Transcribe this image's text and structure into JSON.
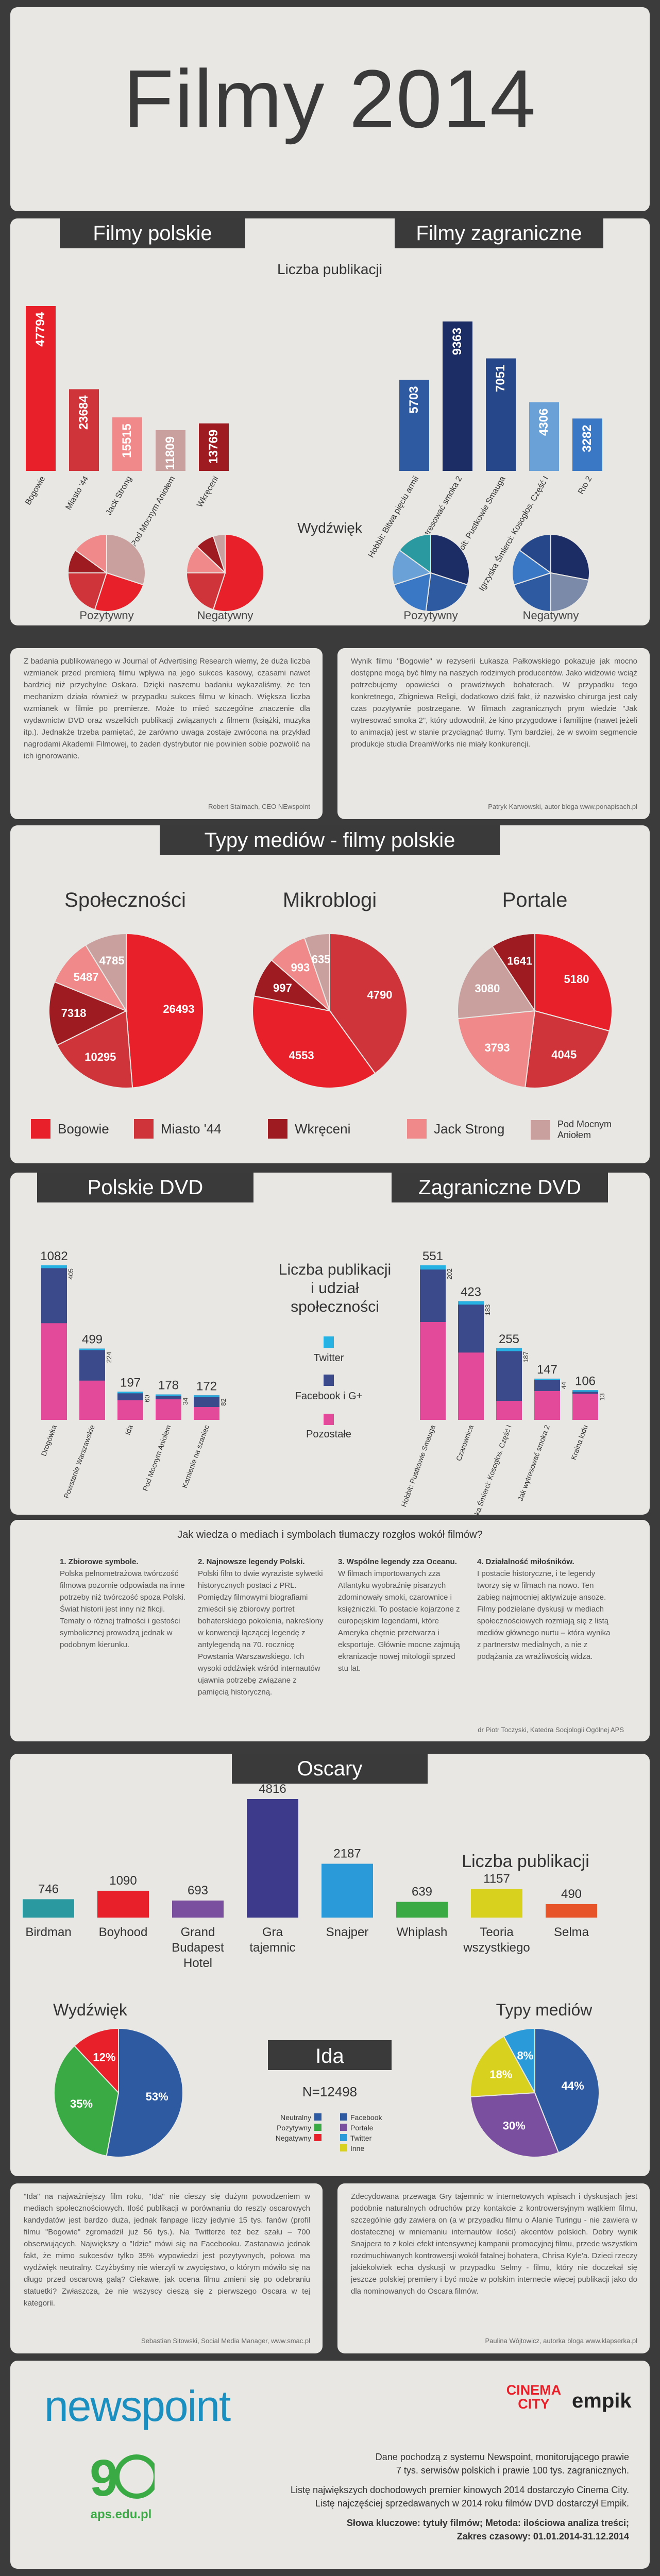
{
  "title": "Filmy 2014",
  "sec1": {
    "pl_head": "Filmy polskie",
    "fr_head": "Filmy zagraniczne",
    "chart_title": "Liczba publikacji",
    "sentiment_title": "Wydźwięk",
    "pos_label": "Pozytywny",
    "neg_label": "Negatywny"
  },
  "quotes1": {
    "left": "Z badania publikowanego w Journal of Advertising Research wiemy, że duża liczba wzmianek przed premierą filmu wpływa na jego sukces kasowy, czasami nawet bardziej niż przychylne Oskara. Dzięki naszemu badaniu wykazaliśmy, że ten mechanizm działa również w przypadku sukces filmu w kinach. Większa liczba wzmianek w filmie po premierze. Może to mieć szczególne znaczenie dla wydawnictw DVD oraz wszelkich publikacji związanych z filmem (książki, muzyka itp.). Jednakże trzeba pamiętać, że zarówno uwaga zostaje zwrócona na przykład nagrodami Akademii Filmowej, to żaden dystrybutor nie powinien sobie pozwolić na ich ignorowanie.",
    "left_sig": "Robert Stalmach, CEO NEwspoint",
    "right": "Wynik filmu \"Bogowie\" w rezyserii Łukasza Pałkowskiego pokazuje jak mocno dostępne mogą być filmy na naszych rodzimych producentów. Jako widzowie wciąż potrzebujemy opowieści o prawdziwych bohaterach. W przypadku tego konkretnego, Zbigniewa Religi, dodatkowo dziś fakt, iż nazwisko chirurga jest cały czas pozytywnie postrzegane. W filmach zagranicznych prym wiedzie \"Jak wytresować smoka 2\", który udowodnił, że kino przygodowe i familijne (nawet jeżeli to animacja) jest w stanie przyciągnąć tłumy. Tym bardziej, że w swoim segmencie produkcje studia DreamWorks nie miały konkurencji.",
    "right_sig": "Patryk Karwowski, autor bloga www.ponapisach.pl"
  },
  "sec2": {
    "head": "Typy mediów - filmy polskie",
    "pie1_title": "Społeczności",
    "pie2_title": "Mikroblogi",
    "pie3_title": "Portale"
  },
  "legend2": [
    {
      "label": "Bogowie",
      "color": "#e8202a"
    },
    {
      "label": "Miasto '44",
      "color": "#d0343b"
    },
    {
      "label": "Wkręceni",
      "color": "#9e1b22"
    },
    {
      "label": "Jack Strong",
      "color": "#f08a8a"
    },
    {
      "label": "Pod Mocnym Aniołem",
      "color": "#c9a09e"
    }
  ],
  "sec3": {
    "pl_head": "Polskie DVD",
    "fr_head": "Zagraniczne DVD",
    "mid_title": "Liczba publikacji i udział społeczności",
    "leg_twitter": "Twitter",
    "leg_fb": "Facebook i G+",
    "leg_other": "Pozostałe"
  },
  "sec4": {
    "question": "Jak wiedza o mediach i symbolach tłumaczy rozgłos wokół filmów?",
    "c1_head": "1. Zbiorowe symbole.",
    "c1": "Polska pełnometrażowa twórczość filmowa pozornie odpowiada na inne potrzeby niż twórczość spoza Polski. Świat historii jest inny niż fikcji. Tematy o różnej trafności i gestości symbolicznej prowadzą jednak w podobnym kierunku.",
    "c2_head": "2. Najnowsze legendy Polski.",
    "c2": "Polski film to dwie wyraziste sylwetki historycznych postaci z PRL. Pomiędzy filmowymi biografiami zmieścił się zbiorowy portret bohaterskiego pokolenia, nakreślony w konwencji łączącej legendę z antylegendą na 70. rocznicę Powstania Warszawskiego. Ich wysoki oddźwięk wśród internautów ujawnia potrzebę związane z pamięcią historyczną.",
    "c3_head": "3. Wspólne legendy zza Oceanu.",
    "c3": "W filmach importowanych zza Atlantyku wyobraźnię pisarzych zdominowały smoki, czarownice i księżniczki. To postacie kojarzone z europejskim legendami, które Ameryka chętnie przetwarza i eksportuje. Głównie mocne zajmują ekranizacje nowej mitologii sprzed stu lat.",
    "c4_head": "4. Działalność miłośników.",
    "c4": "I postacie historyczne, i te legendy tworzy się w filmach na nowo. Ten zabieg najmocniej aktywizuje ansoze. Filmy podzielane dyskusji w mediach społecznościowych rozmiają się z listą mediów głównego nurtu – która wynika z partnerstw medialnych, a nie z podążania za wrażliwością widza.",
    "sig": "dr Piotr Toczyski, Katedra Socjologii Ogólnej APS"
  },
  "sec5": {
    "head": "Oscary",
    "chart_title": "Liczba publikacji",
    "sent_title": "Wydźwięk",
    "media_title": "Typy mediów",
    "ida_head": "Ida",
    "ida_n": "N=12498",
    "leg_neutral": "Neutralny",
    "leg_pos": "Pozytywny",
    "leg_neg": "Negatywny",
    "leg_fb": "Facebook",
    "leg_portal": "Portale",
    "leg_tw": "Twitter",
    "leg_inne": "Inne"
  },
  "quotes2": {
    "left": "\"Ida\" na najważniejszy film roku, \"Ida\" nie cieszy się dużym powodzeniem w mediach społecznościowych. Ilość publikacji w porównaniu do reszty oscarowych kandydatów jest bardzo duża, jednak fanpage liczy jedynie 15 tys. fanów (profil filmu \"Bogowie\" zgromadził już 56 tys.). Na Twitterze też bez szału – 700 obserwujących. Największy o \"Idzie\" mówi się na Facebooku. Zastanawia jednak fakt, że mimo sukcesów tylko 35% wypowiedzi jest pozytywnych, połowa ma wydźwięk neutralny. Czyżbyśmy nie wierzyli w zwycięstwo, o którym mówiło się na długo przed oscarową galą? Ciekawe, jak ocena filmu zmieni się po odebraniu statuetki? Zwłaszcza, że nie wszyscy cieszą się z pierwszego Oscara w tej kategorii.",
    "left_sig": "Sebastian Sitowski, Social Media Manager, www.smac.pl",
    "right": "Zdecydowana przewaga Gry tajemnic w internetowych wpisach i dyskusjach jest podobnie naturalnych odruchów przy kontakcie z kontrowersyjnym wątkiem filmu, szczególnie gdy zawiera on (a w przypadku filmu o Alanie Turingu - nie zawiera w dostatecznej w mniemaniu internautów ilości) akcentów polskich. Dobry wynik Snajpera to z kolei efekt intensywnej kampanii promocyjnej filmu, przede wszystkim rozdmuchiwanych kontrowersji wokół fatalnej bohatera, Chrisa Kyle'a. Dzieci rzeczy jakiekolwiek echa dyskusji w przypadku Selmy - filmu, który nie doczekał się jeszcze polskiej premiery i być może w polskim internecie więcej publikacji jako do dla nominowanych do Oscara filmów.",
    "right_sig": "Paulina Wójtowicz, autorka bloga www.klapserka.pl"
  },
  "footer": {
    "logo": "newspoint",
    "cinema_city": "CINEMA CITY",
    "empik": "empik",
    "aps": "aps.edu.pl",
    "line1": "Dane pochodzą z systemu Newspoint, monitorującego prawie",
    "line2": "7 tys. serwisów polskich i prawie 100 tys. zagranicznych.",
    "line3": "Listę największych dochodowych premier kinowych 2014 dostarczyło Cinema City.",
    "line4": "Listę najczęściej sprzedawanych w 2014 roku filmów DVD dostarczył Empik.",
    "line5": "Słowa kluczowe: tytuły filmów; Metoda: ilościowa analiza treści;",
    "line6": "Zakres czasowy: 01.01.2014-31.12.2014"
  },
  "chart_data": [
    {
      "type": "bar",
      "title": "Liczba publikacji",
      "categories": [
        "Bogowie",
        "Miasto '44",
        "Jack Strong",
        "Pod Mocnym Aniołem",
        "Wkręceni"
      ],
      "values": [
        47794,
        23684,
        15515,
        11809,
        13769
      ],
      "colors": [
        "#e8202a",
        "#d0343b",
        "#f08a8a",
        "#c9a09e",
        "#9e1b22"
      ]
    },
    {
      "type": "bar",
      "title": "Liczba publikacji",
      "categories": [
        "Hobbit: Bitwa pięciu armii",
        "Jak wytresować smoka 2",
        "Hobbit: Pustkowie Smauga",
        "Igrzyska Śmierci: Kosogłos. Część I",
        "Rio 2"
      ],
      "values": [
        5703,
        9363,
        7051,
        4306,
        3282
      ],
      "colors": [
        "#2d5aa0",
        "#1c2c64",
        "#26478a",
        "#6aa2d8",
        "#3a78c6"
      ]
    },
    {
      "type": "pie",
      "title": "Pozytywny",
      "slices": [
        {
          "v": 30,
          "c": "#c9a09e"
        },
        {
          "v": 25,
          "c": "#e8202a"
        },
        {
          "v": 20,
          "c": "#d0343b"
        },
        {
          "v": 10,
          "c": "#9e1b22"
        },
        {
          "v": 15,
          "c": "#f08a8a"
        }
      ]
    },
    {
      "type": "pie",
      "title": "Negatywny",
      "slices": [
        {
          "v": 55,
          "c": "#e8202a"
        },
        {
          "v": 20,
          "c": "#d0343b"
        },
        {
          "v": 12,
          "c": "#f08a8a"
        },
        {
          "v": 8,
          "c": "#9e1b22"
        },
        {
          "v": 5,
          "c": "#c9a09e"
        }
      ]
    },
    {
      "type": "pie",
      "title": "Pozytywny",
      "slices": [
        {
          "v": 30,
          "c": "#1c2c64"
        },
        {
          "v": 22,
          "c": "#2d5aa0"
        },
        {
          "v": 18,
          "c": "#3a78c6"
        },
        {
          "v": 15,
          "c": "#6aa2d8"
        },
        {
          "v": 15,
          "c": "#2b9aa0"
        }
      ]
    },
    {
      "type": "pie",
      "title": "Negatywny",
      "slices": [
        {
          "v": 28,
          "c": "#1c2c64"
        },
        {
          "v": 22,
          "c": "#7a8aa8"
        },
        {
          "v": 20,
          "c": "#2d5aa0"
        },
        {
          "v": 15,
          "c": "#3a78c6"
        },
        {
          "v": 15,
          "c": "#26478a"
        }
      ]
    },
    {
      "type": "pie",
      "title": "Społeczności",
      "slices": [
        {
          "label": "26493",
          "v": 26493,
          "c": "#e8202a"
        },
        {
          "label": "10295",
          "v": 10295,
          "c": "#d0343b"
        },
        {
          "label": "7318",
          "v": 7318,
          "c": "#9e1b22"
        },
        {
          "label": "5487",
          "v": 5487,
          "c": "#f08a8a"
        },
        {
          "label": "4785",
          "v": 4785,
          "c": "#c9a09e"
        }
      ]
    },
    {
      "type": "pie",
      "title": "Mikroblogi",
      "slices": [
        {
          "label": "4790",
          "v": 4790,
          "c": "#d0343b"
        },
        {
          "label": "4553",
          "v": 4553,
          "c": "#e8202a"
        },
        {
          "label": "997",
          "v": 997,
          "c": "#9e1b22"
        },
        {
          "label": "993",
          "v": 993,
          "c": "#f08a8a"
        },
        {
          "label": "635",
          "v": 635,
          "c": "#c9a09e"
        }
      ]
    },
    {
      "type": "pie",
      "title": "Portale",
      "slices": [
        {
          "label": "5180",
          "v": 5180,
          "c": "#e8202a"
        },
        {
          "label": "4045",
          "v": 4045,
          "c": "#d0343b"
        },
        {
          "label": "3793",
          "v": 3793,
          "c": "#f08a8a"
        },
        {
          "label": "3080",
          "v": 3080,
          "c": "#c9a09e"
        },
        {
          "label": "1641",
          "v": 1641,
          "c": "#9e1b22"
        }
      ]
    },
    {
      "type": "bar",
      "title": "Polskie DVD",
      "categories": [
        "Drogówka",
        "Powstanie Warszawskie",
        "Ida",
        "Pod Mocnym Aniołem",
        "Kamienie na szaniec"
      ],
      "totals": [
        1082,
        499,
        197,
        178,
        172
      ],
      "fb": [
        405,
        224,
        60,
        34,
        82
      ],
      "twitter": [
        20,
        10,
        5,
        4,
        4
      ]
    },
    {
      "type": "bar",
      "title": "Zagraniczne DVD",
      "categories": [
        "Hobbit: Pustkowie Smauga",
        "Czarownica",
        "Igrzyska Śmierci: Kosogłos. Część I",
        "Jak wytresować smoka 2",
        "Kraina lodu"
      ],
      "totals": [
        551,
        423,
        255,
        147,
        106
      ],
      "fb": [
        202,
        183,
        187,
        44,
        13
      ],
      "twitter": [
        15,
        12,
        10,
        5,
        3
      ]
    },
    {
      "type": "bar",
      "title": "Liczba publikacji",
      "categories": [
        "Birdman",
        "Boyhood",
        "Grand Budapest Hotel",
        "Gra tajemnic",
        "Snajper",
        "Whiplash",
        "Teoria wszystkiego",
        "Selma"
      ],
      "values": [
        746,
        1090,
        693,
        4816,
        2187,
        639,
        1157,
        490
      ],
      "colors": [
        "#2b9aa0",
        "#e8202a",
        "#7b4fa0",
        "#3d3a8c",
        "#2a9ad8",
        "#3aaa45",
        "#d8d21f",
        "#e8542a"
      ]
    },
    {
      "type": "pie",
      "title": "Wydźwięk",
      "slices": [
        {
          "label": "53%",
          "v": 53,
          "c": "#2d5aa0"
        },
        {
          "label": "35%",
          "v": 35,
          "c": "#3aaa45"
        },
        {
          "label": "12%",
          "v": 12,
          "c": "#e8202a"
        }
      ]
    },
    {
      "type": "pie",
      "title": "Typy mediów",
      "slices": [
        {
          "label": "44%",
          "v": 44,
          "c": "#2d5aa0"
        },
        {
          "label": "30%",
          "v": 30,
          "c": "#7b4fa0"
        },
        {
          "label": "18%",
          "v": 18,
          "c": "#d8d21f"
        },
        {
          "label": "8%",
          "v": 8,
          "c": "#2a9ad8"
        }
      ]
    }
  ]
}
